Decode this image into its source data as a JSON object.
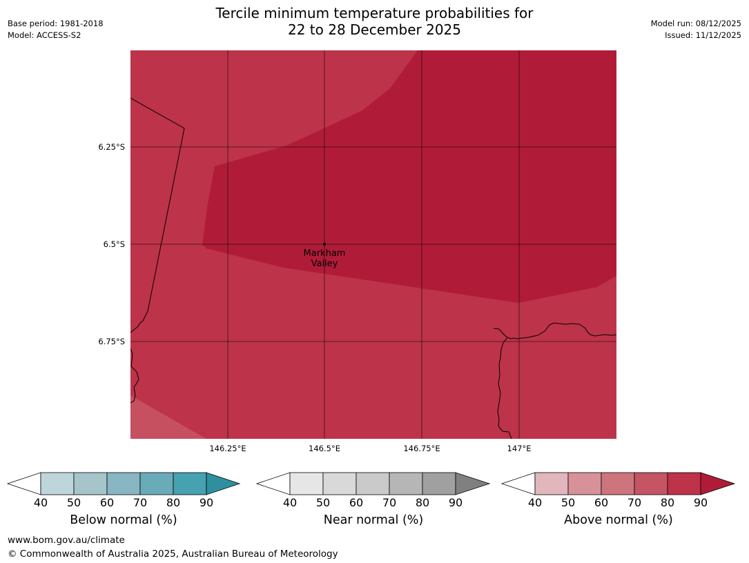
{
  "header": {
    "title_line1": "Tercile minimum temperature probabilities for",
    "title_line2": "22 to 28 December 2025",
    "base_period": "Base period: 1981-2018",
    "model": "Model: ACCESS-S2",
    "model_run": "Model run: 08/12/2025",
    "issued": "Issued: 11/12/2025"
  },
  "map": {
    "lat_labels": [
      "6.25°S",
      "6.5°S",
      "6.75°S"
    ],
    "lon_labels": [
      "146.25°E",
      "146.5°E",
      "146.75°E",
      "147°E"
    ],
    "place": {
      "name_line1": "Markham",
      "name_line2": "Valley"
    },
    "colors": {
      "above_80_90": "#bd3349",
      "above_90_plus": "#b01c38",
      "above_70_80": "#c65060"
    }
  },
  "legends": [
    {
      "title": "Below normal (%)",
      "ticks": [
        "40",
        "50",
        "60",
        "70",
        "80",
        "90"
      ],
      "colors": [
        "#bfd5dc",
        "#a6c5cb",
        "#88b6c2",
        "#6aabba",
        "#46a1b0",
        "#2e8f9f"
      ]
    },
    {
      "title": "Near normal (%)",
      "ticks": [
        "40",
        "50",
        "60",
        "70",
        "80",
        "90"
      ],
      "colors": [
        "#e6e6e6",
        "#d9d9d9",
        "#cacaca",
        "#b6b6b6",
        "#a0a0a0",
        "#808080"
      ]
    },
    {
      "title": "Above normal (%)",
      "ticks": [
        "40",
        "50",
        "60",
        "70",
        "80",
        "90"
      ],
      "colors": [
        "#e1b6bd",
        "#d69199",
        "#cd747d",
        "#c55464",
        "#bd3349",
        "#b01c38"
      ]
    }
  ],
  "footer": {
    "url": "www.bom.gov.au/climate",
    "copyright": "© Commonwealth of Australia 2025, Australian Bureau of Meteorology"
  }
}
